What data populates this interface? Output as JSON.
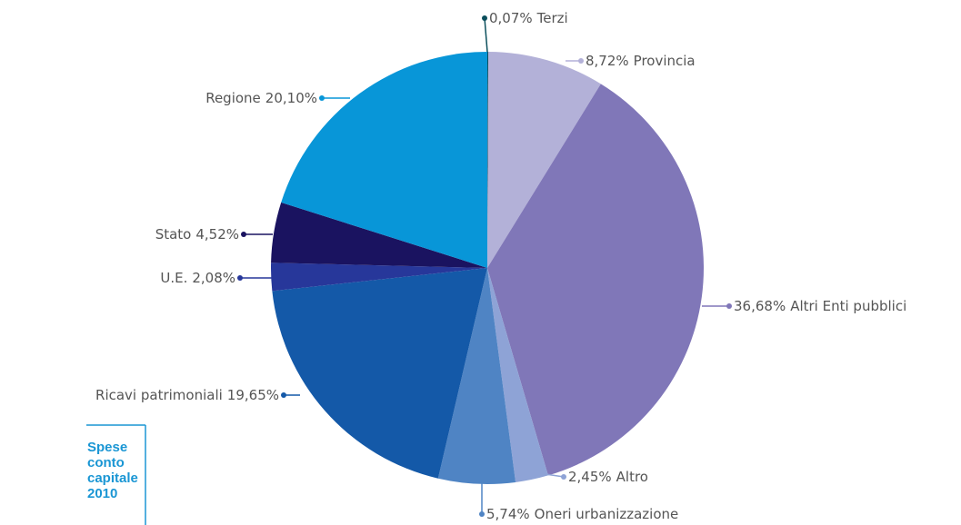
{
  "chart_data": {
    "type": "pie",
    "title": "Spese conto capitale 2010",
    "categories": [
      "Terzi",
      "Provincia",
      "Altri Enti pubblici",
      "Altro",
      "Oneri urbanizzazione",
      "Ricavi patrimoniali",
      "U.E.",
      "Stato",
      "Regione"
    ],
    "values": [
      0.07,
      8.72,
      36.68,
      2.45,
      5.74,
      19.65,
      2.08,
      4.52,
      20.1
    ],
    "value_labels": [
      "0,07%",
      "8,72%",
      "36,68%",
      "2,45%",
      "5,74%",
      "19,65%",
      "2,08%",
      "4,52%",
      "20,10%"
    ],
    "colors": [
      "#0b4f5c",
      "#b3b1d8",
      "#8077b8",
      "#8ea3d6",
      "#4f84c4",
      "#1459a8",
      "#27379a",
      "#1a1360",
      "#0896d8"
    ]
  }
}
